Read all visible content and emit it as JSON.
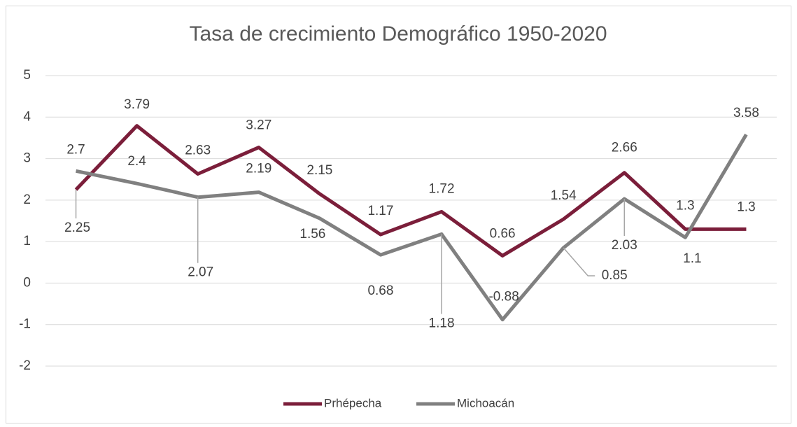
{
  "chart_data": {
    "type": "line",
    "title": "Tasa de crecimiento Demográfico 1950-2020",
    "categories": [
      null,
      null,
      null,
      null,
      null,
      null,
      null,
      null,
      null,
      null,
      null,
      null
    ],
    "series": [
      {
        "name": "Prhépecha",
        "color": "#7b1e3a",
        "values": [
          2.25,
          3.79,
          2.63,
          3.27,
          2.15,
          1.17,
          1.72,
          0.66,
          1.54,
          2.66,
          1.3,
          1.3
        ]
      },
      {
        "name": "Michoacán",
        "color": "#808080",
        "values": [
          2.7,
          2.4,
          2.07,
          2.19,
          1.56,
          0.68,
          1.18,
          -0.88,
          0.85,
          2.03,
          1.1,
          3.58
        ]
      }
    ],
    "ylim": [
      -2,
      5
    ],
    "yticks": [
      -2,
      -1,
      0,
      1,
      2,
      3,
      4,
      5
    ],
    "grid": true,
    "legend": "bottom"
  }
}
